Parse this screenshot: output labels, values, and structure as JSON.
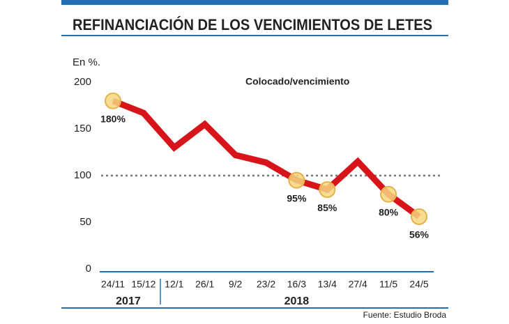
{
  "chart_data": {
    "type": "line",
    "title": "REFINANCIACIÓN DE LOS VENCIMIENTOS DE LETES",
    "y_label": "En %.",
    "annotation": "Colocado/vencimiento",
    "source": "Fuente: Estudio Broda",
    "categories": [
      "24/11",
      "15/12",
      "12/1",
      "26/1",
      "9/2",
      "23/2",
      "16/3",
      "13/4",
      "27/4",
      "11/5",
      "24/5"
    ],
    "x_groups": [
      {
        "label": "2017",
        "count": 2
      },
      {
        "label": "2018",
        "count": 9
      }
    ],
    "series": [
      {
        "name": "Colocado/vencimiento",
        "color": "#d7141a",
        "values": [
          180,
          167,
          130,
          155,
          122,
          114,
          95,
          85,
          115,
          80,
          56
        ],
        "value_labels": [
          "180%",
          null,
          null,
          null,
          null,
          null,
          "95%",
          "85%",
          null,
          "80%",
          "56%"
        ]
      }
    ],
    "reference_line": 100,
    "ylim": [
      0,
      200
    ],
    "yticks": [
      0,
      50,
      100,
      150,
      200
    ],
    "grid": false
  }
}
